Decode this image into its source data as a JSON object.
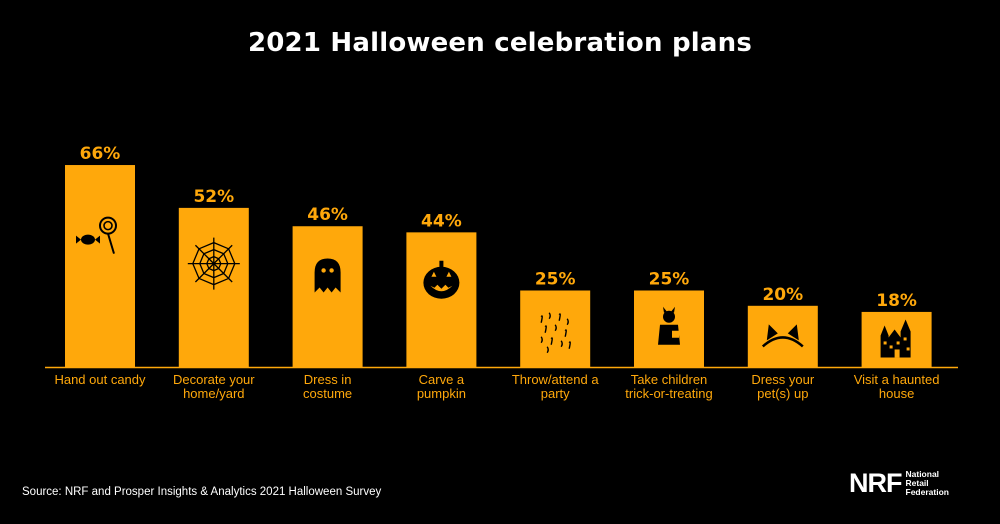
{
  "title": "2021 Halloween celebration plans",
  "chart_data": {
    "type": "bar",
    "title": "2021 Halloween celebration plans",
    "categories": [
      [
        "Hand out candy"
      ],
      [
        "Decorate your",
        "home/yard"
      ],
      [
        "Dress in",
        "costume"
      ],
      [
        "Carve a",
        "pumpkin"
      ],
      [
        "Throw/attend a",
        "party"
      ],
      [
        "Take children",
        "trick-or-treating"
      ],
      [
        "Dress your",
        "pet(s) up"
      ],
      [
        "Visit a haunted",
        "house"
      ]
    ],
    "values": [
      66,
      52,
      46,
      44,
      25,
      25,
      20,
      18
    ],
    "value_labels": [
      "66%",
      "52%",
      "46%",
      "44%",
      "25%",
      "25%",
      "20%",
      "18%"
    ],
    "icons": [
      "candy-icon",
      "spiderweb-icon",
      "ghost-icon",
      "pumpkin-icon",
      "confetti-icon",
      "child-costume-icon",
      "cat-ears-icon",
      "haunted-house-icon"
    ],
    "ylim": [
      0,
      100
    ],
    "grid": false,
    "legend": "none",
    "colors": {
      "bar": "#FFA80B",
      "label": "#FFA80B",
      "icon": "#000000",
      "baseline": "#FFA80B",
      "background": "#000000"
    }
  },
  "source": "Source: NRF and Prosper Insights & Analytics 2021 Halloween Survey",
  "logo": {
    "mark": "NRF",
    "lines": [
      "National",
      "Retail",
      "Federation"
    ]
  }
}
